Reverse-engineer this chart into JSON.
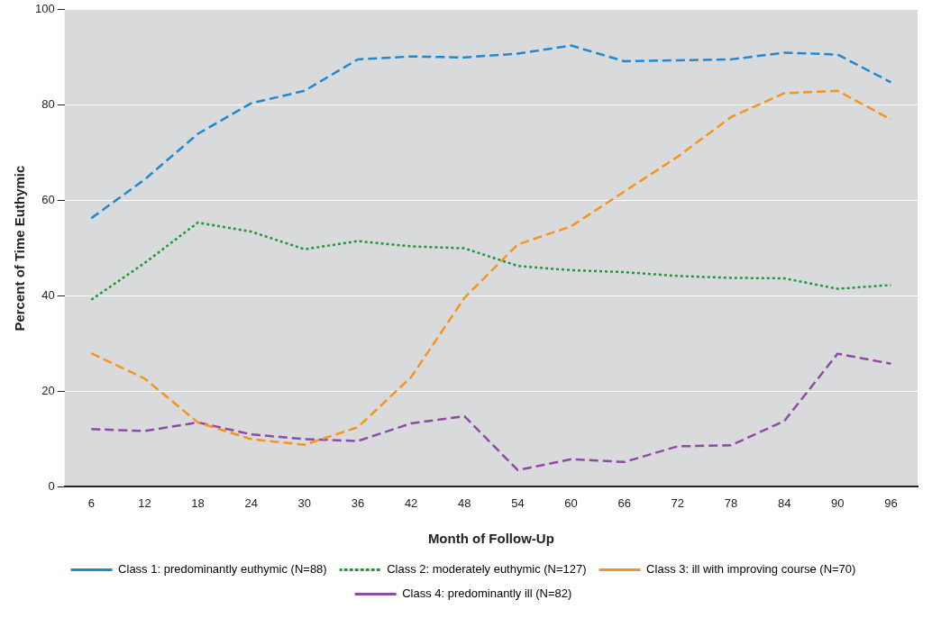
{
  "chart_data": {
    "type": "line",
    "xlabel": "Month of Follow-Up",
    "ylabel": "Percent of Time Euthymic",
    "categories": [
      "6",
      "12",
      "18",
      "24",
      "30",
      "36",
      "42",
      "48",
      "54",
      "60",
      "66",
      "72",
      "78",
      "84",
      "90",
      "96"
    ],
    "ylim": [
      0,
      100
    ],
    "yticks": [
      0,
      20,
      40,
      60,
      80,
      100
    ],
    "grid": "y",
    "legend": "bottom",
    "marker": "none",
    "series": [
      {
        "name": "Class 1: predominantly euthymic (N=88)",
        "color": "#1f8ad2",
        "line_style": "dashed",
        "values": [
          56.3,
          64.4,
          74,
          80.4,
          83,
          89.6,
          90.2,
          90,
          90.8,
          92.5,
          89.2,
          89.4,
          89.6,
          91,
          90.6,
          84.8
        ]
      },
      {
        "name": "Class 2: moderately euthymic (N=127)",
        "color": "#1e9a3c",
        "line_style": "dotted",
        "values": [
          39.2,
          46.9,
          55.4,
          53.5,
          49.8,
          51.5,
          50.4,
          50,
          46.3,
          45.4,
          45,
          44.2,
          43.8,
          43.7,
          41.5,
          42.3
        ]
      },
      {
        "name": "Class 3: ill with improving course (N=70)",
        "color": "#f7941d",
        "line_style": "dashed",
        "values": [
          28,
          22.7,
          13.5,
          10,
          8.8,
          12.5,
          23,
          39.6,
          50.8,
          54.6,
          61.9,
          69.2,
          77.5,
          82.5,
          83,
          77
        ]
      },
      {
        "name": "Class 4: predominantly ill (N=82)",
        "color": "#8e4ba5",
        "line_style": "dashed",
        "values": [
          12.1,
          11.7,
          13.5,
          11,
          10,
          9.6,
          13.3,
          14.8,
          3.5,
          5.8,
          5.2,
          8.5,
          8.7,
          13.8,
          27.9,
          25.8
        ]
      }
    ]
  }
}
